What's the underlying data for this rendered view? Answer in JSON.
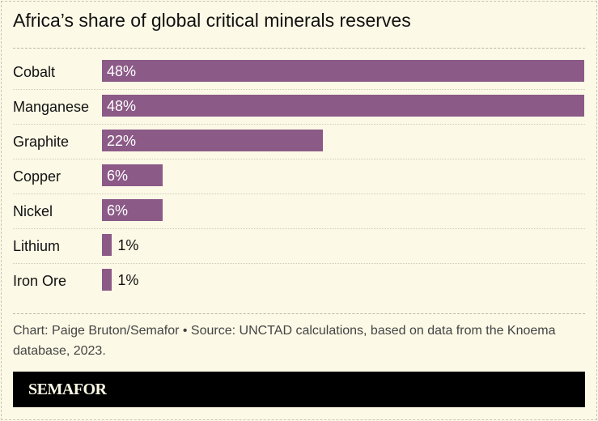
{
  "chart_data": {
    "type": "bar",
    "orientation": "horizontal",
    "title": "Africa’s share of global critical minerals reserves",
    "categories": [
      "Cobalt",
      "Manganese",
      "Graphite",
      "Copper",
      "Nickel",
      "Lithium",
      "Iron Ore"
    ],
    "values": [
      48,
      48,
      22,
      6,
      6,
      1,
      1
    ],
    "data_labels": [
      "48%",
      "48%",
      "22%",
      "6%",
      "6%",
      "1%",
      "1%"
    ],
    "unit": "%",
    "xlim": [
      0,
      48
    ],
    "bar_color": "#8b5a87",
    "grid": false
  },
  "footer": {
    "credit": "Chart: Paige Bruton/Semafor • Source: UNCTAD calculations, based on data from the Knoema database, 2023."
  },
  "brand": {
    "logo": "SEMAFOR"
  },
  "colors": {
    "background": "#fcf9e6",
    "bar": "#8b5a87",
    "brand_bar": "#000000"
  }
}
